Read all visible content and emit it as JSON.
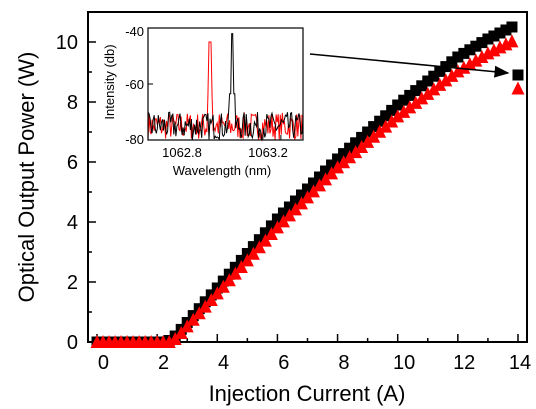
{
  "chart_data": [
    {
      "type": "scatter",
      "title": "",
      "xlabel": "Injection Current (A)",
      "ylabel": "Optical Output Power (W)",
      "xlim": [
        -0.3,
        14.3
      ],
      "ylim": [
        0,
        11
      ],
      "xticks": [
        "0",
        "2",
        "4",
        "6",
        "8",
        "10",
        "12",
        "14"
      ],
      "yticks": [
        "0",
        "2",
        "4",
        "6",
        "8",
        "10"
      ],
      "grid": false,
      "series": [
        {
          "marker": "square",
          "color": "#000000",
          "x": [
            0,
            0.2,
            0.4,
            0.6,
            0.8,
            1.0,
            1.2,
            1.4,
            1.6,
            1.8,
            2.0,
            2.2,
            2.4,
            2.6,
            2.8,
            3.0,
            3.2,
            3.4,
            3.6,
            3.8,
            4.0,
            4.2,
            4.4,
            4.6,
            4.8,
            5.0,
            5.2,
            5.4,
            5.6,
            5.8,
            6.0,
            6.2,
            6.4,
            6.6,
            6.8,
            7.0,
            7.2,
            7.4,
            7.6,
            7.8,
            8.0,
            8.2,
            8.4,
            8.6,
            8.8,
            9.0,
            9.2,
            9.4,
            9.6,
            9.8,
            10.0,
            10.2,
            10.4,
            10.6,
            10.8,
            11.0,
            11.2,
            11.4,
            11.6,
            11.8,
            12.0,
            12.2,
            12.4,
            12.6,
            12.8,
            13.0,
            13.2,
            13.4,
            13.6,
            13.8,
            14.0
          ],
          "y": [
            0,
            0,
            0,
            0,
            0,
            0,
            0,
            0,
            0,
            0,
            0,
            0,
            0.05,
            0.2,
            0.42,
            0.65,
            0.88,
            1.11,
            1.34,
            1.57,
            1.8,
            2.03,
            2.26,
            2.49,
            2.72,
            2.95,
            3.18,
            3.41,
            3.64,
            3.87,
            4.1,
            4.3,
            4.5,
            4.7,
            4.9,
            5.1,
            5.3,
            5.5,
            5.7,
            5.9,
            6.1,
            6.28,
            6.46,
            6.64,
            6.82,
            7.0,
            7.18,
            7.36,
            7.54,
            7.72,
            7.9,
            8.06,
            8.22,
            8.38,
            8.54,
            8.7,
            8.86,
            9.02,
            9.18,
            9.34,
            9.5,
            9.62,
            9.74,
            9.86,
            9.98,
            10.1,
            10.2,
            10.3,
            10.4,
            10.5,
            8.9
          ]
        },
        {
          "marker": "triangle",
          "color": "#ff0000",
          "x": [
            0,
            0.2,
            0.4,
            0.6,
            0.8,
            1.0,
            1.2,
            1.4,
            1.6,
            1.8,
            2.0,
            2.2,
            2.4,
            2.6,
            2.8,
            3.0,
            3.2,
            3.4,
            3.6,
            3.8,
            4.0,
            4.2,
            4.4,
            4.6,
            4.8,
            5.0,
            5.2,
            5.4,
            5.6,
            5.8,
            6.0,
            6.2,
            6.4,
            6.6,
            6.8,
            7.0,
            7.2,
            7.4,
            7.6,
            7.8,
            8.0,
            8.2,
            8.4,
            8.6,
            8.8,
            9.0,
            9.2,
            9.4,
            9.6,
            9.8,
            10.0,
            10.2,
            10.4,
            10.6,
            10.8,
            11.0,
            11.2,
            11.4,
            11.6,
            11.8,
            12.0,
            12.2,
            12.4,
            12.6,
            12.8,
            13.0,
            13.2,
            13.4,
            13.6,
            13.8,
            14.0
          ],
          "y": [
            0,
            0,
            0,
            0,
            0,
            0,
            0,
            0,
            0,
            0,
            0,
            0,
            0,
            0.1,
            0.3,
            0.52,
            0.74,
            0.96,
            1.18,
            1.4,
            1.62,
            1.84,
            2.06,
            2.28,
            2.5,
            2.72,
            2.94,
            3.16,
            3.38,
            3.6,
            3.82,
            4.02,
            4.22,
            4.42,
            4.62,
            4.82,
            5.02,
            5.22,
            5.42,
            5.62,
            5.82,
            5.99,
            6.16,
            6.33,
            6.5,
            6.67,
            6.84,
            7.01,
            7.18,
            7.35,
            7.52,
            7.67,
            7.82,
            7.97,
            8.12,
            8.27,
            8.42,
            8.57,
            8.72,
            8.87,
            9.02,
            9.14,
            9.26,
            9.38,
            9.5,
            9.62,
            9.72,
            9.82,
            9.92,
            10.02,
            8.45
          ]
        }
      ],
      "annotation": {
        "type": "arrow",
        "from": "inset",
        "to_x": 13.9,
        "to_y": 8.9
      }
    },
    {
      "type": "line",
      "title": "",
      "xlabel": "Wavelength (nm)",
      "ylabel": "Intensity (db)",
      "xlim": [
        1062.6,
        1063.3
      ],
      "ylim": [
        -80,
        -40
      ],
      "xticks": [
        "1062.8",
        "1063.2"
      ],
      "yticks": [
        "-40",
        "-60",
        "-80"
      ],
      "series": [
        {
          "color": "#ff0000",
          "peak_x": 1062.88,
          "peak_y": -45,
          "noise_floor": -75
        },
        {
          "color": "#000000",
          "peak_x": 1062.98,
          "peak_y": -42,
          "noise_floor": -75
        }
      ]
    }
  ]
}
